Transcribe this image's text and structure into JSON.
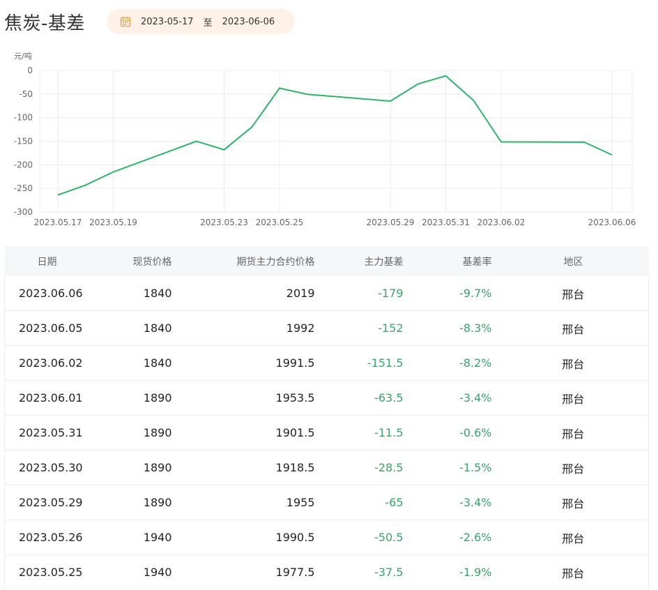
{
  "title": "焦炭-基差",
  "date_range": {
    "start": "2023-05-17",
    "separator": "至",
    "end": "2023-06-06"
  },
  "chart_data": {
    "type": "line",
    "ylabel": "元/吨",
    "ylim": [
      -300,
      0
    ],
    "y_ticks": [
      "0",
      "-50",
      "-100",
      "-150",
      "-200",
      "-250",
      "-300"
    ],
    "x_tick_labels": [
      "2023.05.17",
      "2023.05.19",
      "2023.05.23",
      "2023.05.25",
      "2023.05.29",
      "2023.05.31",
      "2023.06.02",
      "2023.06.06"
    ],
    "grid": true,
    "line_color": "#2db36a",
    "x": [
      "2023.05.17",
      "2023.05.18",
      "2023.05.19",
      "2023.05.22",
      "2023.05.23",
      "2023.05.24",
      "2023.05.25",
      "2023.05.26",
      "2023.05.29",
      "2023.05.30",
      "2023.05.31",
      "2023.06.01",
      "2023.06.02",
      "2023.06.05",
      "2023.06.06"
    ],
    "values": [
      -264,
      -243,
      -215,
      -150,
      -168,
      -120,
      -37.5,
      -50.5,
      -65,
      -28.5,
      -11.5,
      -63.5,
      -151.5,
      -152,
      -179
    ]
  },
  "table": {
    "headers": [
      "日期",
      "现货价格",
      "期货主力合约价格",
      "主力基差",
      "基差率",
      "地区"
    ],
    "rows": [
      [
        "2023.06.06",
        "1840",
        "2019",
        "-179",
        "-9.7%",
        "邢台"
      ],
      [
        "2023.06.05",
        "1840",
        "1992",
        "-152",
        "-8.3%",
        "邢台"
      ],
      [
        "2023.06.02",
        "1840",
        "1991.5",
        "-151.5",
        "-8.2%",
        "邢台"
      ],
      [
        "2023.06.01",
        "1890",
        "1953.5",
        "-63.5",
        "-3.4%",
        "邢台"
      ],
      [
        "2023.05.31",
        "1890",
        "1901.5",
        "-11.5",
        "-0.6%",
        "邢台"
      ],
      [
        "2023.05.30",
        "1890",
        "1918.5",
        "-28.5",
        "-1.5%",
        "邢台"
      ],
      [
        "2023.05.29",
        "1890",
        "1955",
        "-65",
        "-3.4%",
        "邢台"
      ],
      [
        "2023.05.26",
        "1940",
        "1990.5",
        "-50.5",
        "-2.6%",
        "邢台"
      ],
      [
        "2023.05.25",
        "1940",
        "1977.5",
        "-37.5",
        "-1.9%",
        "邢台"
      ]
    ]
  },
  "colors": {
    "accent_green": "#3aa36a",
    "date_pill_bg": "#fdf1e8",
    "calendar_icon": "#e8a13a"
  }
}
